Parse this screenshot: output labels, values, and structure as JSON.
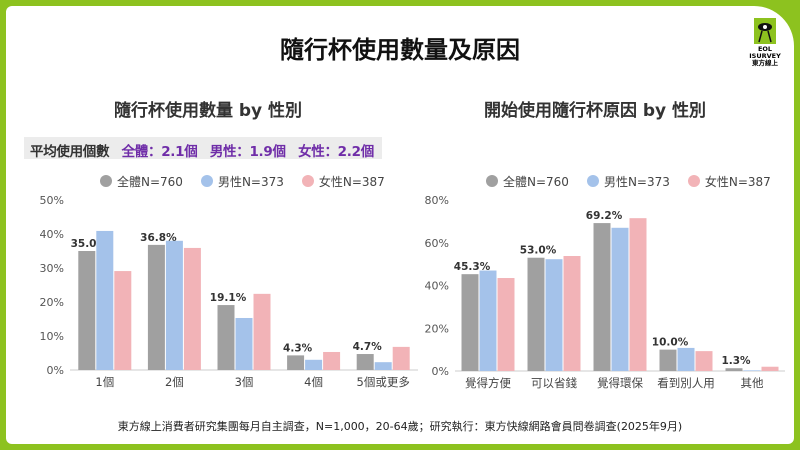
{
  "title": "隨行杯使用數量及原因",
  "logo": {
    "line1": "EOL",
    "line2": "ISURVEY",
    "line3": "東方線上"
  },
  "average": {
    "label": "平均使用個數",
    "overall": "全體：2.1個",
    "male": "男性：1.9個",
    "female": "女性：2.2個"
  },
  "colors": {
    "overall": "#a0a0a0",
    "male": "#a4c2ea",
    "female": "#f2b3b7",
    "accent": "#8dc21f"
  },
  "footer": "東方線上消費者研究集團每月自主調查，N=1,000，20-64歲；研究執行：東方快線網路會員問卷調查(2025年9月)",
  "chart_data": [
    {
      "type": "bar",
      "title": "隨行杯使用數量 by 性別",
      "categories": [
        "1個",
        "2個",
        "3個",
        "4個",
        "5個或更多"
      ],
      "ylim": [
        0,
        50
      ],
      "yticks": [
        "0%",
        "10%",
        "20%",
        "30%",
        "40%",
        "50%"
      ],
      "legend": "top",
      "series": [
        {
          "name": "全體N=760",
          "values": [
            35.0,
            36.8,
            19.1,
            4.3,
            4.7
          ],
          "labels": [
            "35.0%",
            "36.8%",
            "19.1%",
            "4.3%",
            "4.7%"
          ]
        },
        {
          "name": "男性N=373",
          "values": [
            40.9,
            38.0,
            15.3,
            3.0,
            2.3
          ]
        },
        {
          "name": "女性N=387",
          "values": [
            29.1,
            35.9,
            22.4,
            5.3,
            6.8
          ]
        }
      ]
    },
    {
      "type": "bar",
      "title": "開始使用隨行杯原因 by 性別",
      "categories": [
        "覺得方便",
        "可以省錢",
        "覺得環保",
        "看到別人用",
        "其他"
      ],
      "ylim": [
        0,
        80
      ],
      "yticks": [
        "0%",
        "20%",
        "40%",
        "60%",
        "80%"
      ],
      "legend": "top",
      "series": [
        {
          "name": "全體N=760",
          "values": [
            45.3,
            53.0,
            69.2,
            10.0,
            1.3
          ],
          "labels": [
            "45.3%",
            "53.0%",
            "69.2%",
            "10.0%",
            "1.3%"
          ]
        },
        {
          "name": "男性N=373",
          "values": [
            47.0,
            52.3,
            67.0,
            10.8,
            0.3
          ]
        },
        {
          "name": "女性N=387",
          "values": [
            43.5,
            53.8,
            71.5,
            9.3,
            2.0
          ]
        }
      ]
    }
  ]
}
